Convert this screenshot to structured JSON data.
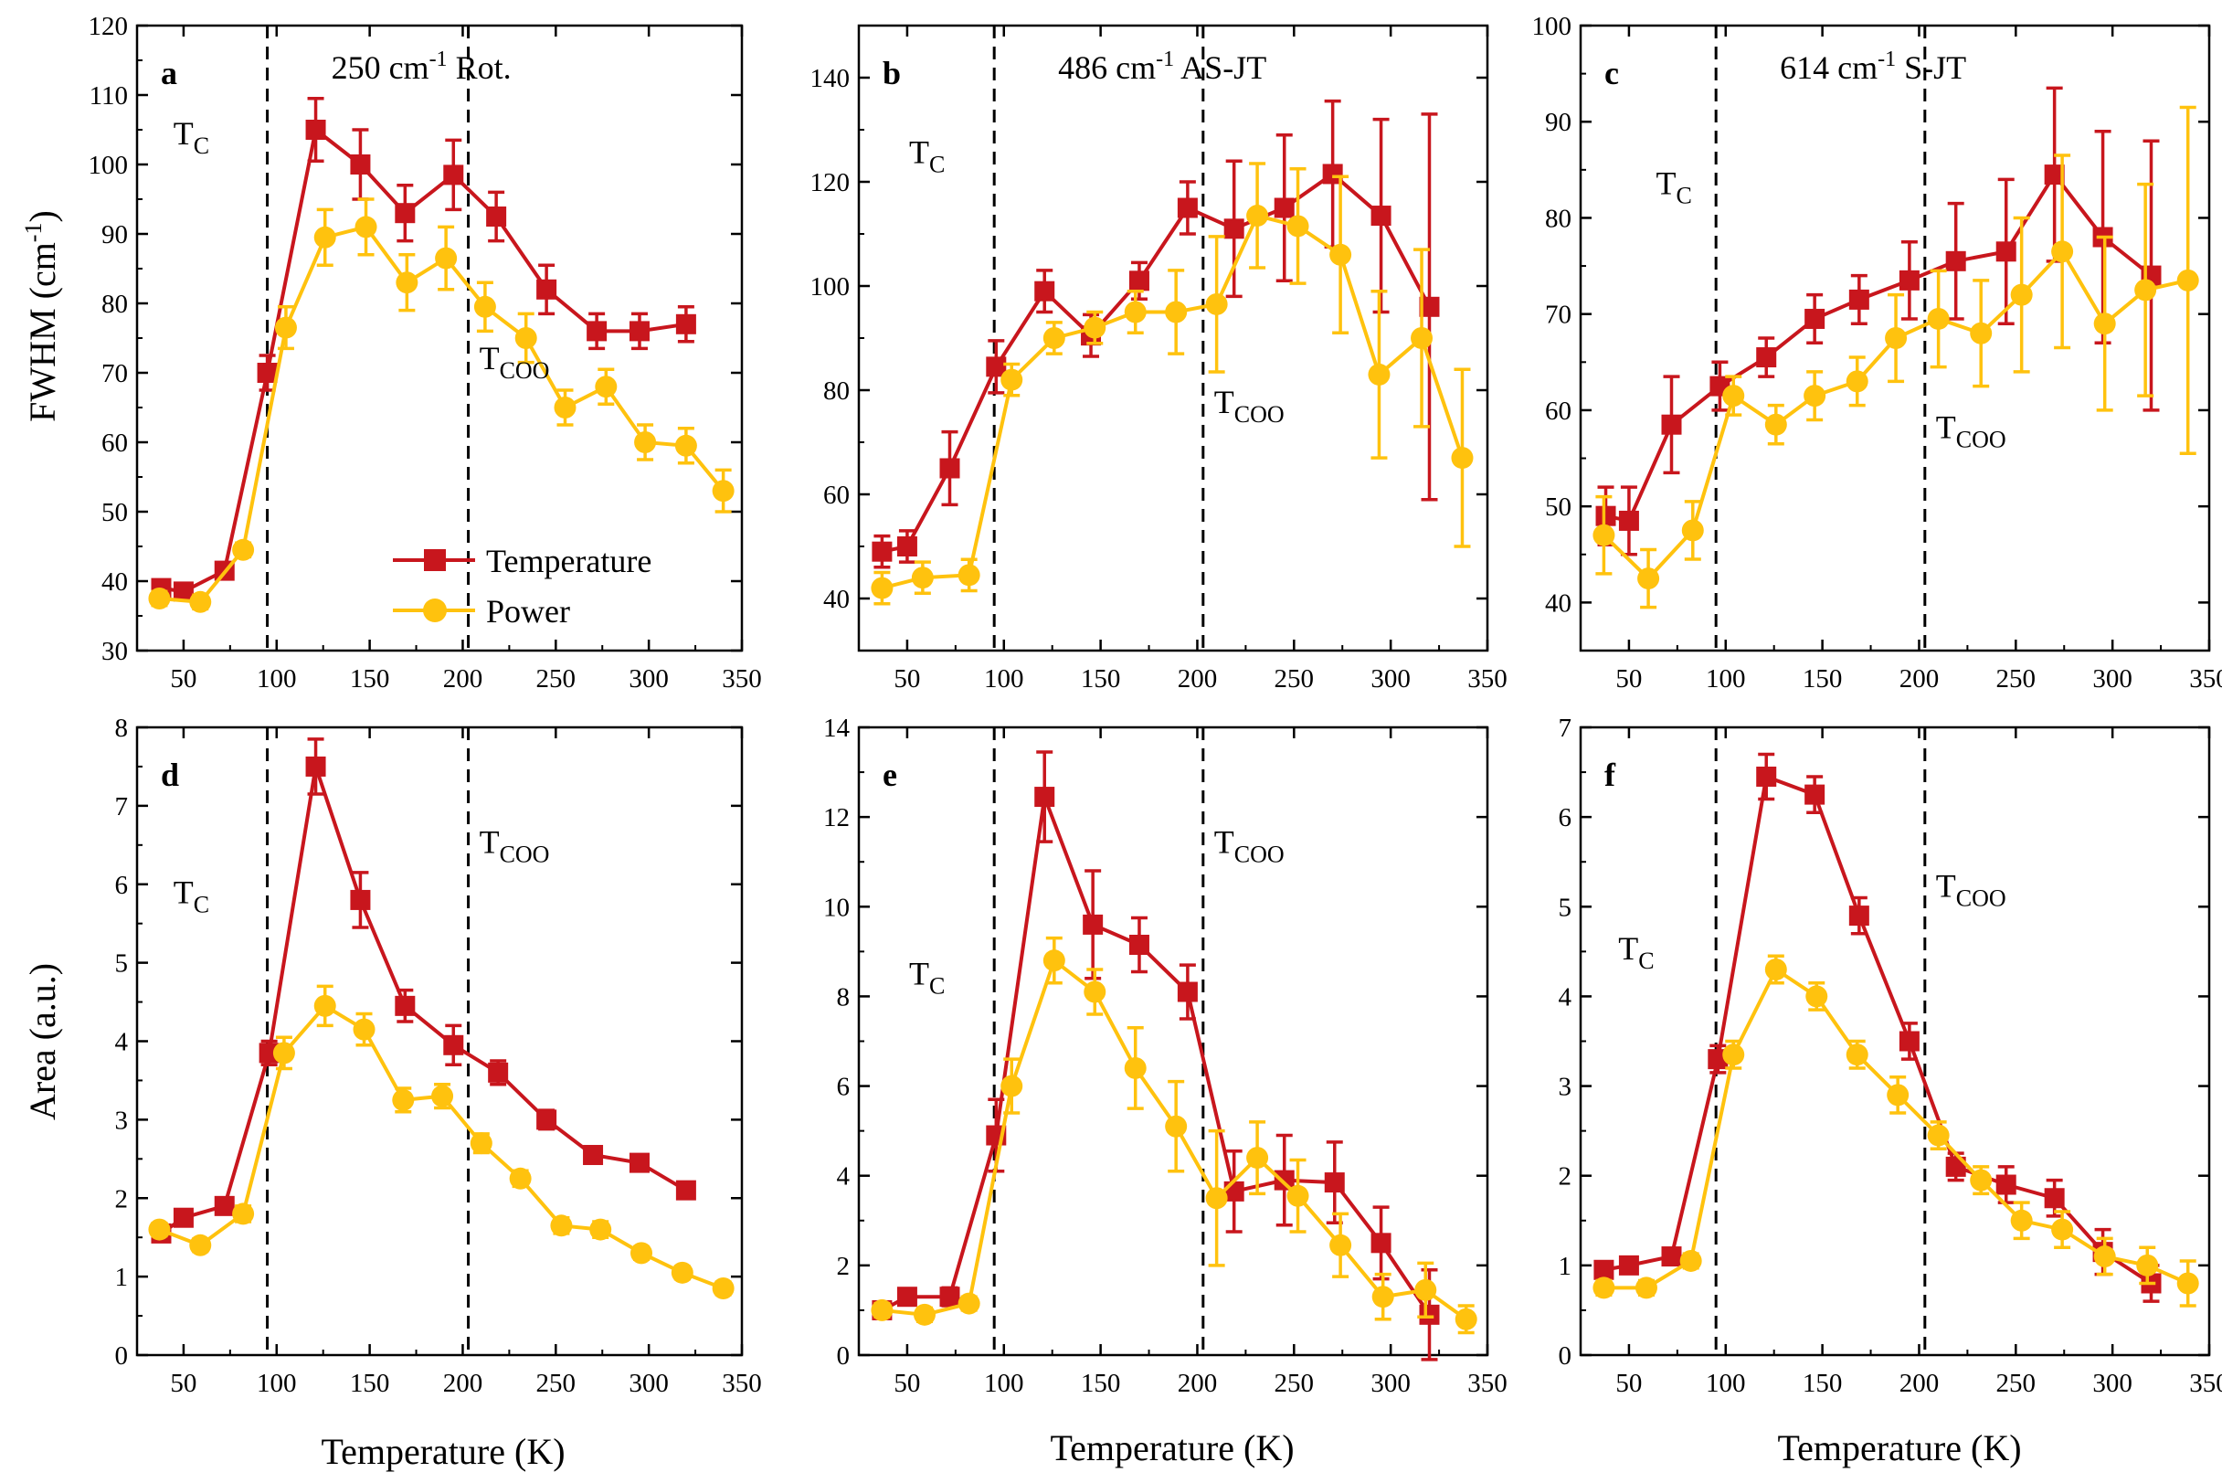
{
  "colors": {
    "temperature": "#C8161D",
    "power": "#FFC20E",
    "axis": "#000000"
  },
  "legend": {
    "temperature": "Temperature",
    "power": "Power"
  },
  "common": {
    "xlabel": "Temperature (K)",
    "ylabel_top": "FWHM (cm",
    "ylabel_top_sup": "-1",
    "ylabel_top_close": ")",
    "ylabel_bottom": "Area (a.u.)"
  },
  "chart_data": [
    {
      "id": "a",
      "type": "line",
      "letter": "a",
      "title_num": "250 cm",
      "title_sup": "-1",
      "title_rest": " Rot.",
      "xlim": [
        25,
        350
      ],
      "ylim": [
        30,
        120
      ],
      "xticks": [
        50,
        100,
        150,
        200,
        250,
        300,
        350
      ],
      "yticks": [
        30,
        40,
        50,
        60,
        70,
        80,
        90,
        100,
        110,
        120
      ],
      "vlines": [
        95,
        203
      ],
      "tc_label": "T",
      "tc_sub": "C",
      "tcoo_label": "T",
      "tcoo_sub": "COO",
      "show_legend": true,
      "series": [
        {
          "name": "Temperature",
          "x": [
            38,
            50,
            72,
            95,
            121,
            145,
            169,
            195,
            218,
            245,
            272,
            295,
            320
          ],
          "y": [
            39,
            38.5,
            41.5,
            70,
            105,
            100,
            93,
            98.5,
            92.5,
            82,
            76,
            76,
            77
          ],
          "err": [
            1,
            1,
            1,
            2.5,
            4.5,
            5,
            4,
            5,
            3.5,
            3.5,
            2.5,
            2.5,
            2.5
          ]
        },
        {
          "name": "Power",
          "x": [
            37,
            59,
            82,
            105,
            126,
            148,
            170,
            191,
            212,
            234,
            255,
            277,
            298,
            320,
            340
          ],
          "y": [
            37.5,
            37,
            44.5,
            76.5,
            89.5,
            91,
            83,
            86.5,
            79.5,
            75,
            65,
            68,
            60,
            59.5,
            53
          ],
          "err": [
            1,
            1,
            1,
            3,
            4,
            4,
            4,
            4.5,
            3.5,
            3.5,
            2.5,
            2.5,
            2.5,
            2.5,
            3
          ]
        }
      ]
    },
    {
      "id": "b",
      "type": "line",
      "letter": "b",
      "title_num": "486 cm",
      "title_sup": "-1",
      "title_rest": " AS-JT",
      "xlim": [
        25,
        350
      ],
      "ylim": [
        30,
        150
      ],
      "xticks": [
        50,
        100,
        150,
        200,
        250,
        300,
        350
      ],
      "yticks": [
        40,
        60,
        80,
        100,
        120,
        140
      ],
      "vlines": [
        95,
        203
      ],
      "tc_label": "T",
      "tc_sub": "C",
      "tcoo_label": "T",
      "tcoo_sub": "COO",
      "show_legend": false,
      "series": [
        {
          "name": "Temperature",
          "x": [
            37,
            50,
            72,
            96,
            121,
            145,
            170,
            195,
            219,
            245,
            270,
            295,
            320
          ],
          "y": [
            49,
            50,
            65,
            84.5,
            99,
            90.5,
            101,
            115,
            111,
            115,
            121.5,
            113.5,
            96
          ],
          "err": [
            3,
            3,
            7,
            5,
            4,
            4,
            3.5,
            5,
            13,
            14,
            14,
            18.5,
            37
          ]
        },
        {
          "name": "Power",
          "x": [
            37,
            58,
            82,
            104,
            126,
            147,
            168,
            189,
            210,
            231,
            252,
            274,
            294,
            316,
            337
          ],
          "y": [
            42,
            44,
            44.5,
            82,
            90,
            92,
            95,
            95,
            96.5,
            113.5,
            111.5,
            106,
            83,
            90,
            67
          ],
          "err": [
            3,
            3,
            3,
            3,
            3,
            3,
            4,
            8,
            13,
            10,
            11,
            15,
            16,
            17,
            17
          ]
        }
      ]
    },
    {
      "id": "c",
      "type": "line",
      "letter": "c",
      "title_num": "614 cm",
      "title_sup": "-1",
      "title_rest": " S-JT",
      "xlim": [
        25,
        350
      ],
      "ylim": [
        35,
        100
      ],
      "xticks": [
        50,
        100,
        150,
        200,
        250,
        300,
        350
      ],
      "yticks": [
        40,
        50,
        60,
        70,
        80,
        90,
        100
      ],
      "vlines": [
        95,
        203
      ],
      "tc_label": "T",
      "tc_sub": "C",
      "tcoo_label": "T",
      "tcoo_sub": "COO",
      "show_legend": false,
      "series": [
        {
          "name": "Temperature",
          "x": [
            38,
            50,
            72,
            97,
            121,
            146,
            169,
            195,
            219,
            245,
            270,
            295,
            320
          ],
          "y": [
            49,
            48.5,
            58.5,
            62.5,
            65.5,
            69.5,
            71.5,
            73.5,
            75.5,
            76.5,
            84.5,
            78,
            74
          ],
          "err": [
            3,
            3.5,
            5,
            2.5,
            2,
            2.5,
            2.5,
            4,
            6,
            7.5,
            9,
            11,
            14
          ]
        },
        {
          "name": "Power",
          "x": [
            37,
            60,
            83,
            104,
            126,
            146,
            168,
            188,
            210,
            232,
            253,
            274,
            296,
            317,
            339
          ],
          "y": [
            47,
            42.5,
            47.5,
            61.5,
            58.5,
            61.5,
            63,
            67.5,
            69.5,
            68,
            72,
            76.5,
            69,
            72.5,
            73.5
          ],
          "err": [
            4,
            3,
            3,
            2,
            2,
            2.5,
            2.5,
            4.5,
            5,
            5.5,
            8,
            10,
            9,
            11,
            18
          ]
        }
      ]
    },
    {
      "id": "d",
      "type": "line",
      "letter": "d",
      "title_num": "",
      "title_sup": "",
      "title_rest": "",
      "xlim": [
        25,
        350
      ],
      "ylim": [
        0,
        8
      ],
      "xticks": [
        50,
        100,
        150,
        200,
        250,
        300,
        350
      ],
      "yticks": [
        0,
        1,
        2,
        3,
        4,
        5,
        6,
        7,
        8
      ],
      "vlines": [
        95,
        203
      ],
      "tc_label": "T",
      "tc_sub": "C",
      "tcoo_label": "T",
      "tcoo_sub": "COO",
      "show_legend": false,
      "series": [
        {
          "name": "Temperature",
          "x": [
            38,
            50,
            72,
            96,
            121,
            145,
            169,
            195,
            219,
            245,
            270,
            295,
            320
          ],
          "y": [
            1.55,
            1.75,
            1.9,
            3.85,
            7.5,
            5.8,
            4.45,
            3.95,
            3.6,
            3,
            2.55,
            2.45,
            2.1
          ],
          "err": [
            0.08,
            0.08,
            0.08,
            0.15,
            0.35,
            0.35,
            0.2,
            0.25,
            0.15,
            0.12,
            0.1,
            0.1,
            0.1
          ]
        },
        {
          "name": "Power",
          "x": [
            37,
            59,
            82,
            104,
            126,
            147,
            168,
            189,
            210,
            231,
            253,
            274,
            296,
            318,
            340
          ],
          "y": [
            1.6,
            1.4,
            1.8,
            3.85,
            4.45,
            4.15,
            3.25,
            3.3,
            2.7,
            2.25,
            1.65,
            1.6,
            1.3,
            1.05,
            0.85
          ],
          "err": [
            0.08,
            0.08,
            0.1,
            0.2,
            0.25,
            0.2,
            0.15,
            0.15,
            0.12,
            0.1,
            0.1,
            0.1,
            0.08,
            0.08,
            0.08
          ]
        }
      ]
    },
    {
      "id": "e",
      "type": "line",
      "letter": "e",
      "title_num": "",
      "title_sup": "",
      "title_rest": "",
      "xlim": [
        25,
        350
      ],
      "ylim": [
        0,
        14
      ],
      "xticks": [
        50,
        100,
        150,
        200,
        250,
        300,
        350
      ],
      "yticks": [
        0,
        2,
        4,
        6,
        8,
        10,
        12,
        14
      ],
      "vlines": [
        95,
        203
      ],
      "tc_label": "T",
      "tc_sub": "C",
      "tcoo_label": "T",
      "tcoo_sub": "COO",
      "show_legend": false,
      "series": [
        {
          "name": "Temperature",
          "x": [
            37,
            50,
            72,
            96,
            121,
            146,
            170,
            195,
            219,
            245,
            271,
            295,
            320
          ],
          "y": [
            1,
            1.3,
            1.3,
            4.9,
            12.45,
            9.6,
            9.15,
            8.1,
            3.65,
            3.9,
            3.85,
            2.5,
            0.9
          ],
          "err": [
            0.15,
            0.15,
            0.2,
            0.8,
            1,
            1.2,
            0.6,
            0.6,
            0.9,
            1,
            0.9,
            0.8,
            1
          ]
        },
        {
          "name": "Power",
          "x": [
            37,
            59,
            82,
            104,
            126,
            147,
            168,
            189,
            210,
            231,
            252,
            274,
            296,
            318,
            339
          ],
          "y": [
            1,
            0.9,
            1.15,
            6,
            8.8,
            8.1,
            6.4,
            5.1,
            3.5,
            4.4,
            3.55,
            2.45,
            1.3,
            1.45,
            0.8
          ],
          "err": [
            0.15,
            0.15,
            0.15,
            0.6,
            0.5,
            0.5,
            0.9,
            1,
            1.5,
            0.8,
            0.8,
            0.7,
            0.5,
            0.6,
            0.3
          ]
        }
      ]
    },
    {
      "id": "f",
      "type": "line",
      "letter": "f",
      "title_num": "",
      "title_sup": "",
      "title_rest": "",
      "xlim": [
        25,
        350
      ],
      "ylim": [
        0,
        7
      ],
      "xticks": [
        50,
        100,
        150,
        200,
        250,
        300,
        350
      ],
      "yticks": [
        0,
        1,
        2,
        3,
        4,
        5,
        6,
        7
      ],
      "vlines": [
        95,
        203
      ],
      "tc_label": "T",
      "tc_sub": "C",
      "tcoo_label": "T",
      "tcoo_sub": "COO",
      "show_legend": false,
      "series": [
        {
          "name": "Temperature",
          "x": [
            37,
            50,
            72,
            96,
            121,
            146,
            169,
            195,
            219,
            245,
            270,
            295,
            320
          ],
          "y": [
            0.95,
            1,
            1.1,
            3.3,
            6.45,
            6.25,
            4.9,
            3.5,
            2.1,
            1.9,
            1.75,
            1.15,
            0.8
          ],
          "err": [
            0.08,
            0.08,
            0.08,
            0.15,
            0.25,
            0.2,
            0.2,
            0.2,
            0.15,
            0.2,
            0.2,
            0.25,
            0.2
          ]
        },
        {
          "name": "Power",
          "x": [
            37,
            59,
            82,
            104,
            126,
            147,
            168,
            189,
            210,
            232,
            253,
            274,
            296,
            318,
            339
          ],
          "y": [
            0.75,
            0.75,
            1.05,
            3.35,
            4.3,
            4,
            3.35,
            2.9,
            2.45,
            1.95,
            1.5,
            1.4,
            1.1,
            1,
            0.8
          ],
          "err": [
            0.08,
            0.08,
            0.08,
            0.15,
            0.15,
            0.15,
            0.15,
            0.2,
            0.15,
            0.15,
            0.2,
            0.2,
            0.2,
            0.2,
            0.25
          ]
        }
      ]
    }
  ]
}
